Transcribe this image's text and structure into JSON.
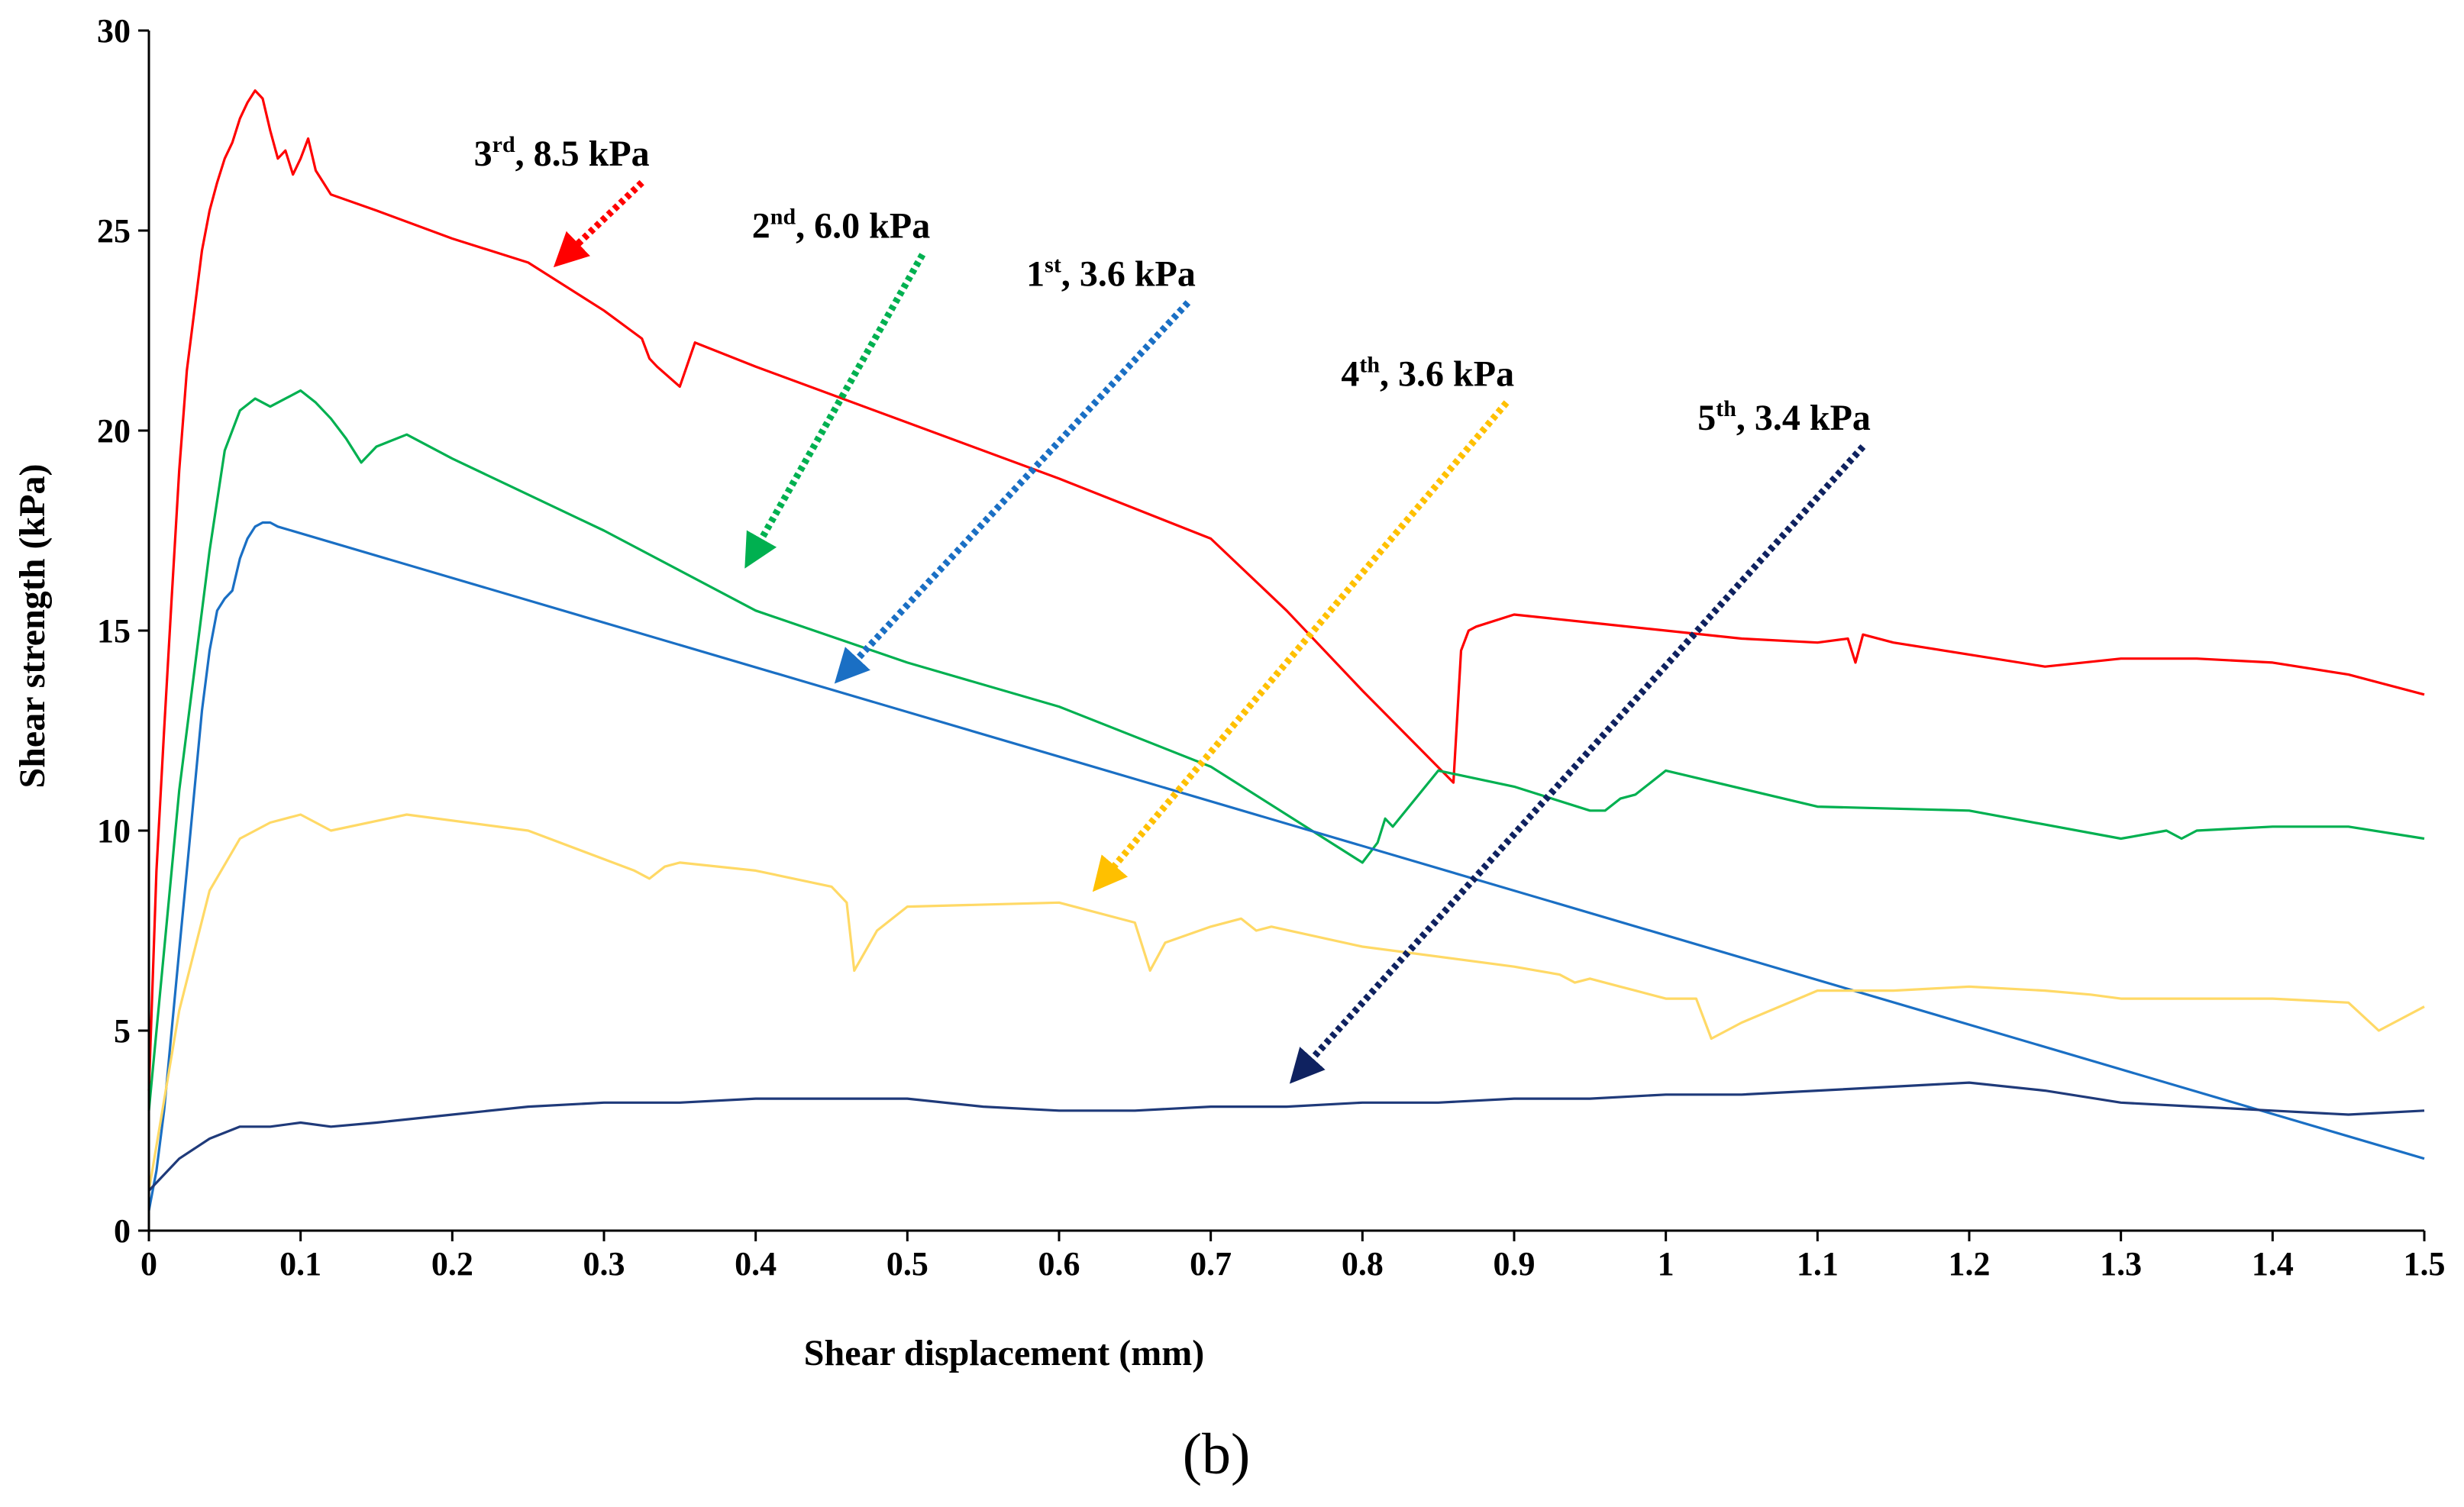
{
  "chart_data": {
    "type": "line",
    "xlabel": "Shear displacement (mm)",
    "ylabel": "Shear strength (kPa)",
    "xlim": [
      0,
      1.5
    ],
    "ylim": [
      0,
      30
    ],
    "x_ticks": [
      "0",
      "0.1",
      "0.2",
      "0.3",
      "0.4",
      "0.5",
      "0.6",
      "0.7",
      "0.8",
      "0.9",
      "1",
      "1.1",
      "1.2",
      "1.3",
      "1.4",
      "1.5"
    ],
    "y_ticks": [
      "0",
      "5",
      "10",
      "15",
      "20",
      "25",
      "30"
    ],
    "grid": false,
    "caption": "(b)",
    "series": [
      {
        "name": "3rd, 8.5 kPa",
        "color": "#ff0000",
        "x": [
          0,
          0.005,
          0.01,
          0.015,
          0.02,
          0.025,
          0.03,
          0.035,
          0.04,
          0.045,
          0.05,
          0.055,
          0.06,
          0.065,
          0.07,
          0.075,
          0.08,
          0.085,
          0.09,
          0.095,
          0.1,
          0.105,
          0.11,
          0.115,
          0.12,
          0.15,
          0.2,
          0.25,
          0.3,
          0.325,
          0.33,
          0.335,
          0.35,
          0.36,
          0.4,
          0.5,
          0.6,
          0.7,
          0.75,
          0.8,
          0.86,
          0.865,
          0.87,
          0.875,
          0.9,
          0.95,
          1.0,
          1.05,
          1.1,
          1.12,
          1.125,
          1.13,
          1.15,
          1.2,
          1.25,
          1.3,
          1.35,
          1.4,
          1.45,
          1.5
        ],
        "y": [
          3.5,
          9,
          12.5,
          15.8,
          19,
          21.5,
          23,
          24.5,
          25.5,
          26.2,
          26.8,
          27.2,
          27.8,
          28.2,
          28.5,
          28.3,
          27.5,
          26.8,
          27,
          26.4,
          26.8,
          27.3,
          26.5,
          26.2,
          25.9,
          25.5,
          24.8,
          24.2,
          23,
          22.3,
          21.8,
          21.6,
          21.1,
          22.2,
          21.6,
          20.2,
          18.8,
          17.3,
          15.5,
          13.5,
          11.2,
          14.5,
          15,
          15.1,
          15.4,
          15.2,
          15,
          14.8,
          14.7,
          14.8,
          14.2,
          14.9,
          14.7,
          14.4,
          14.1,
          14.3,
          14.3,
          14.2,
          13.9,
          13.4
        ]
      },
      {
        "name": "2nd, 6.0 kPa",
        "color": "#00b050",
        "x": [
          0,
          0.01,
          0.02,
          0.03,
          0.04,
          0.05,
          0.06,
          0.07,
          0.08,
          0.09,
          0.1,
          0.11,
          0.12,
          0.13,
          0.14,
          0.15,
          0.17,
          0.2,
          0.3,
          0.4,
          0.5,
          0.6,
          0.7,
          0.8,
          0.81,
          0.815,
          0.82,
          0.85,
          0.9,
          0.95,
          0.96,
          0.97,
          0.98,
          1.0,
          1.1,
          1.2,
          1.3,
          1.33,
          1.34,
          1.35,
          1.4,
          1.45,
          1.5
        ],
        "y": [
          3,
          7,
          11,
          14,
          17,
          19.5,
          20.5,
          20.8,
          20.6,
          20.8,
          21,
          20.7,
          20.3,
          19.8,
          19.2,
          19.6,
          19.9,
          19.3,
          17.5,
          15.5,
          14.2,
          13.1,
          11.6,
          9.2,
          9.7,
          10.3,
          10.1,
          11.5,
          11.1,
          10.5,
          10.5,
          10.8,
          10.9,
          11.5,
          10.6,
          10.5,
          9.8,
          10,
          9.8,
          10,
          10.1,
          10.1,
          9.8
        ]
      },
      {
        "name": "1st, 3.6 kPa",
        "color": "#1a6fc4",
        "x": [
          0,
          0.005,
          0.01,
          0.015,
          0.02,
          0.025,
          0.03,
          0.035,
          0.04,
          0.045,
          0.05,
          0.055,
          0.06,
          0.065,
          0.07,
          0.075,
          0.08,
          0.085,
          1.5
        ],
        "y": [
          0.5,
          1.5,
          3,
          5,
          7,
          9,
          11,
          13,
          14.5,
          15.5,
          15.8,
          16,
          16.8,
          17.3,
          17.6,
          17.7,
          17.7,
          17.6,
          1.8
        ]
      },
      {
        "name": "4th, 3.6 kPa",
        "color": "#ffd966",
        "x": [
          0,
          0.02,
          0.04,
          0.06,
          0.08,
          0.1,
          0.12,
          0.17,
          0.25,
          0.32,
          0.33,
          0.34,
          0.35,
          0.4,
          0.45,
          0.46,
          0.465,
          0.48,
          0.5,
          0.6,
          0.65,
          0.66,
          0.67,
          0.7,
          0.72,
          0.73,
          0.74,
          0.8,
          0.9,
          0.93,
          0.94,
          0.95,
          0.97,
          0.98,
          1.0,
          1.02,
          1.03,
          1.05,
          1.1,
          1.15,
          1.2,
          1.25,
          1.28,
          1.3,
          1.35,
          1.4,
          1.45,
          1.47,
          1.5
        ],
        "y": [
          1,
          5.5,
          8.5,
          9.8,
          10.2,
          10.4,
          10,
          10.4,
          10,
          9,
          8.8,
          9.1,
          9.2,
          9,
          8.6,
          8.2,
          6.5,
          7.5,
          8.1,
          8.2,
          7.7,
          6.5,
          7.2,
          7.6,
          7.8,
          7.5,
          7.6,
          7.1,
          6.6,
          6.4,
          6.2,
          6.3,
          6.1,
          6,
          5.8,
          5.8,
          4.8,
          5.2,
          6,
          6,
          6.1,
          6,
          5.9,
          5.8,
          5.8,
          5.8,
          5.7,
          5,
          5.6
        ]
      },
      {
        "name": "5th, 3.4 kPa",
        "color": "#1f3a7a",
        "x": [
          0,
          0.02,
          0.04,
          0.06,
          0.08,
          0.1,
          0.12,
          0.15,
          0.2,
          0.25,
          0.3,
          0.35,
          0.4,
          0.45,
          0.5,
          0.55,
          0.6,
          0.65,
          0.7,
          0.75,
          0.8,
          0.85,
          0.9,
          0.95,
          1.0,
          1.05,
          1.1,
          1.15,
          1.2,
          1.25,
          1.3,
          1.35,
          1.4,
          1.45,
          1.5
        ],
        "y": [
          1,
          1.8,
          2.3,
          2.6,
          2.6,
          2.7,
          2.6,
          2.7,
          2.9,
          3.1,
          3.2,
          3.2,
          3.3,
          3.3,
          3.3,
          3.1,
          3,
          3,
          3.1,
          3.1,
          3.2,
          3.2,
          3.3,
          3.3,
          3.4,
          3.4,
          3.5,
          3.6,
          3.7,
          3.5,
          3.2,
          3.1,
          3,
          2.9,
          3
        ]
      }
    ],
    "annotations": [
      {
        "base": "3",
        "sup": "rd",
        "rest": ", 8.5 kPa",
        "color": "#ff0000",
        "arrow_from": [
          0.325,
          26.2
        ],
        "arrow_to": [
          0.27,
          24.2
        ]
      },
      {
        "base": "2",
        "sup": "nd",
        "rest": ", 6.0 kPa",
        "color": "#00b050",
        "arrow_from": [
          0.51,
          24.4
        ],
        "arrow_to": [
          0.395,
          16.7
        ]
      },
      {
        "base": "1",
        "sup": "st",
        "rest": ", 3.6 kPa",
        "color": "#1a6fc4",
        "arrow_from": [
          0.685,
          23.2
        ],
        "arrow_to": [
          0.455,
          13.8
        ]
      },
      {
        "base": "4",
        "sup": "th",
        "rest": ", 3.6 kPa",
        "color": "#ffc000",
        "arrow_from": [
          0.895,
          20.7
        ],
        "arrow_to": [
          0.625,
          8.6
        ]
      },
      {
        "base": "5",
        "sup": "th",
        "rest": ", 3.4 kPa",
        "color": "#0f2260",
        "arrow_from": [
          1.13,
          19.6
        ],
        "arrow_to": [
          0.755,
          3.8
        ]
      }
    ]
  }
}
